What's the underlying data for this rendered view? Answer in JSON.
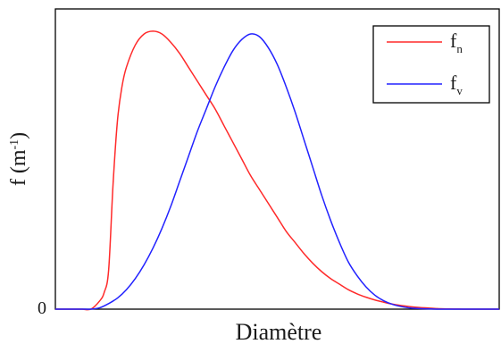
{
  "chart_data": {
    "type": "line",
    "title": "",
    "xlabel": "Diamètre",
    "ylabel": "f (m",
    "ylabel_sup": "-1",
    "ylabel_close": ")",
    "y_ticks": [
      "0"
    ],
    "xlim": [
      0,
      1
    ],
    "ylim": [
      0,
      1.08
    ],
    "grid": false,
    "legend_position": "top-right",
    "series": [
      {
        "name": "f",
        "subscript": "n",
        "color": "#ff2a2a",
        "x": [
          0.0,
          0.02,
          0.04,
          0.06,
          0.08,
          0.1,
          0.11,
          0.12,
          0.13,
          0.14,
          0.15,
          0.16,
          0.18,
          0.2,
          0.22,
          0.24,
          0.26,
          0.28,
          0.3,
          0.32,
          0.34,
          0.36,
          0.38,
          0.4,
          0.42,
          0.44,
          0.46,
          0.48,
          0.5,
          0.52,
          0.54,
          0.56,
          0.58,
          0.6,
          0.62,
          0.64,
          0.66,
          0.68,
          0.7,
          0.72,
          0.74,
          0.76,
          0.78,
          0.8,
          0.82,
          0.84,
          0.86,
          0.88,
          0.9,
          0.92,
          0.94,
          0.96,
          0.98,
          1.0
        ],
        "y": [
          0,
          0,
          0,
          0,
          0,
          0.03,
          0.06,
          0.14,
          0.45,
          0.68,
          0.8,
          0.87,
          0.95,
          0.99,
          1.0,
          0.99,
          0.96,
          0.92,
          0.87,
          0.82,
          0.77,
          0.72,
          0.66,
          0.6,
          0.54,
          0.48,
          0.43,
          0.38,
          0.33,
          0.28,
          0.24,
          0.2,
          0.165,
          0.135,
          0.11,
          0.09,
          0.07,
          0.055,
          0.043,
          0.033,
          0.025,
          0.018,
          0.013,
          0.009,
          0.006,
          0.004,
          0.002,
          0.001,
          0.0005,
          0,
          0,
          0,
          0,
          0
        ]
      },
      {
        "name": "f",
        "subscript": "v",
        "color": "#2222ff",
        "x": [
          0.0,
          0.02,
          0.04,
          0.06,
          0.08,
          0.1,
          0.12,
          0.14,
          0.16,
          0.18,
          0.2,
          0.22,
          0.24,
          0.26,
          0.28,
          0.3,
          0.32,
          0.34,
          0.36,
          0.38,
          0.4,
          0.42,
          0.44,
          0.46,
          0.48,
          0.5,
          0.52,
          0.54,
          0.56,
          0.58,
          0.6,
          0.62,
          0.64,
          0.66,
          0.68,
          0.7,
          0.72,
          0.74,
          0.76,
          0.78,
          0.8,
          0.82,
          0.84,
          0.86,
          0.88,
          0.9,
          0.92,
          0.94,
          0.96,
          0.98,
          1.0
        ],
        "y": [
          0,
          0,
          0,
          0,
          0,
          0.005,
          0.02,
          0.04,
          0.07,
          0.11,
          0.16,
          0.22,
          0.29,
          0.37,
          0.46,
          0.55,
          0.64,
          0.72,
          0.8,
          0.87,
          0.93,
          0.97,
          0.99,
          0.98,
          0.94,
          0.88,
          0.8,
          0.71,
          0.61,
          0.51,
          0.41,
          0.32,
          0.24,
          0.17,
          0.12,
          0.08,
          0.05,
          0.03,
          0.017,
          0.009,
          0.004,
          0.002,
          0.001,
          0,
          0,
          0,
          0,
          0,
          0,
          0,
          0
        ]
      }
    ]
  }
}
